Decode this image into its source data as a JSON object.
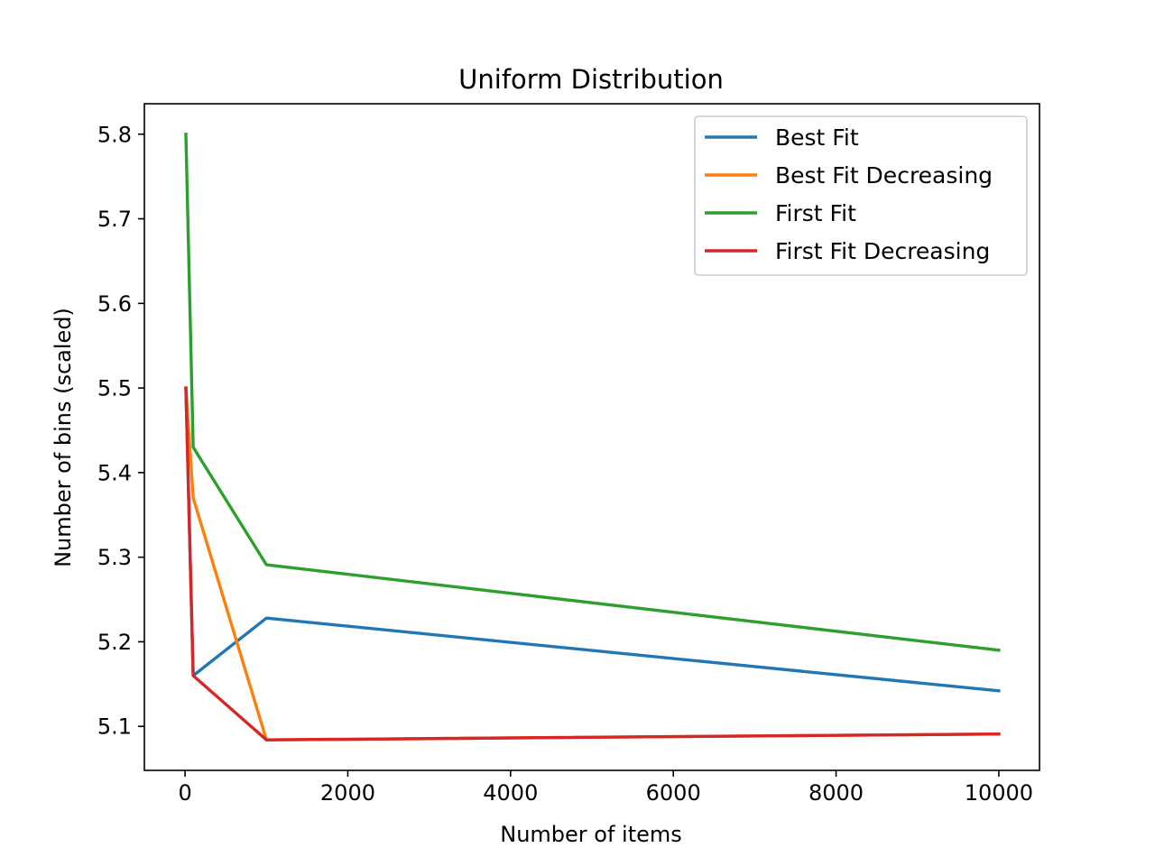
{
  "chart_data": {
    "type": "line",
    "title": "Uniform Distribution",
    "xlabel": "Number of items",
    "ylabel": "Number of bins (scaled)",
    "x": [
      10,
      100,
      1000,
      10000
    ],
    "xlim": [
      -500,
      10500
    ],
    "ylim": [
      5.048,
      5.836
    ],
    "xticks": [
      0,
      2000,
      4000,
      6000,
      8000,
      10000
    ],
    "xtick_labels": [
      "0",
      "2000",
      "4000",
      "6000",
      "8000",
      "10000"
    ],
    "yticks": [
      5.1,
      5.2,
      5.3,
      5.4,
      5.5,
      5.6,
      5.7,
      5.8
    ],
    "ytick_labels": [
      "5.1",
      "5.2",
      "5.3",
      "5.4",
      "5.5",
      "5.6",
      "5.7",
      "5.8"
    ],
    "grid": false,
    "legend_position": "top-right",
    "series": [
      {
        "name": "Best Fit",
        "color": "#1f77b4",
        "values": [
          5.5,
          5.16,
          5.228,
          5.142
        ]
      },
      {
        "name": "Best Fit Decreasing",
        "color": "#ff7f0e",
        "values": [
          5.5,
          5.37,
          5.084,
          5.091
        ]
      },
      {
        "name": "First Fit",
        "color": "#2ca02c",
        "values": [
          5.8,
          5.43,
          5.291,
          5.19
        ]
      },
      {
        "name": "First Fit Decreasing",
        "color": "#d62728",
        "values": [
          5.5,
          5.16,
          5.084,
          5.091
        ]
      }
    ]
  }
}
